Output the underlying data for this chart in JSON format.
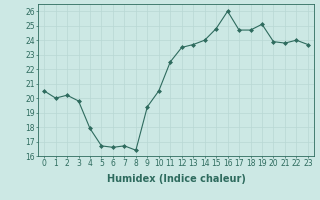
{
  "x": [
    0,
    1,
    2,
    3,
    4,
    5,
    6,
    7,
    8,
    9,
    10,
    11,
    12,
    13,
    14,
    15,
    16,
    17,
    18,
    19,
    20,
    21,
    22,
    23
  ],
  "y": [
    20.5,
    20.0,
    20.2,
    19.8,
    17.9,
    16.7,
    16.6,
    16.7,
    16.4,
    19.4,
    20.5,
    22.5,
    23.5,
    23.7,
    24.0,
    24.8,
    26.0,
    24.7,
    24.7,
    25.1,
    23.9,
    23.8,
    24.0,
    23.7
  ],
  "line_color": "#2e6b5e",
  "marker": "D",
  "marker_size": 2.0,
  "bg_color": "#cce8e4",
  "grid_color": "#b8d8d4",
  "xlabel": "Humidex (Indice chaleur)",
  "xlim": [
    -0.5,
    23.5
  ],
  "ylim": [
    16,
    26.5
  ],
  "yticks": [
    16,
    17,
    18,
    19,
    20,
    21,
    22,
    23,
    24,
    25,
    26
  ],
  "xticks": [
    0,
    1,
    2,
    3,
    4,
    5,
    6,
    7,
    8,
    9,
    10,
    11,
    12,
    13,
    14,
    15,
    16,
    17,
    18,
    19,
    20,
    21,
    22,
    23
  ],
  "tick_color": "#2e6b5e",
  "label_color": "#2e6b5e",
  "xlabel_fontsize": 7,
  "tick_fontsize": 5.5,
  "linewidth": 0.8
}
